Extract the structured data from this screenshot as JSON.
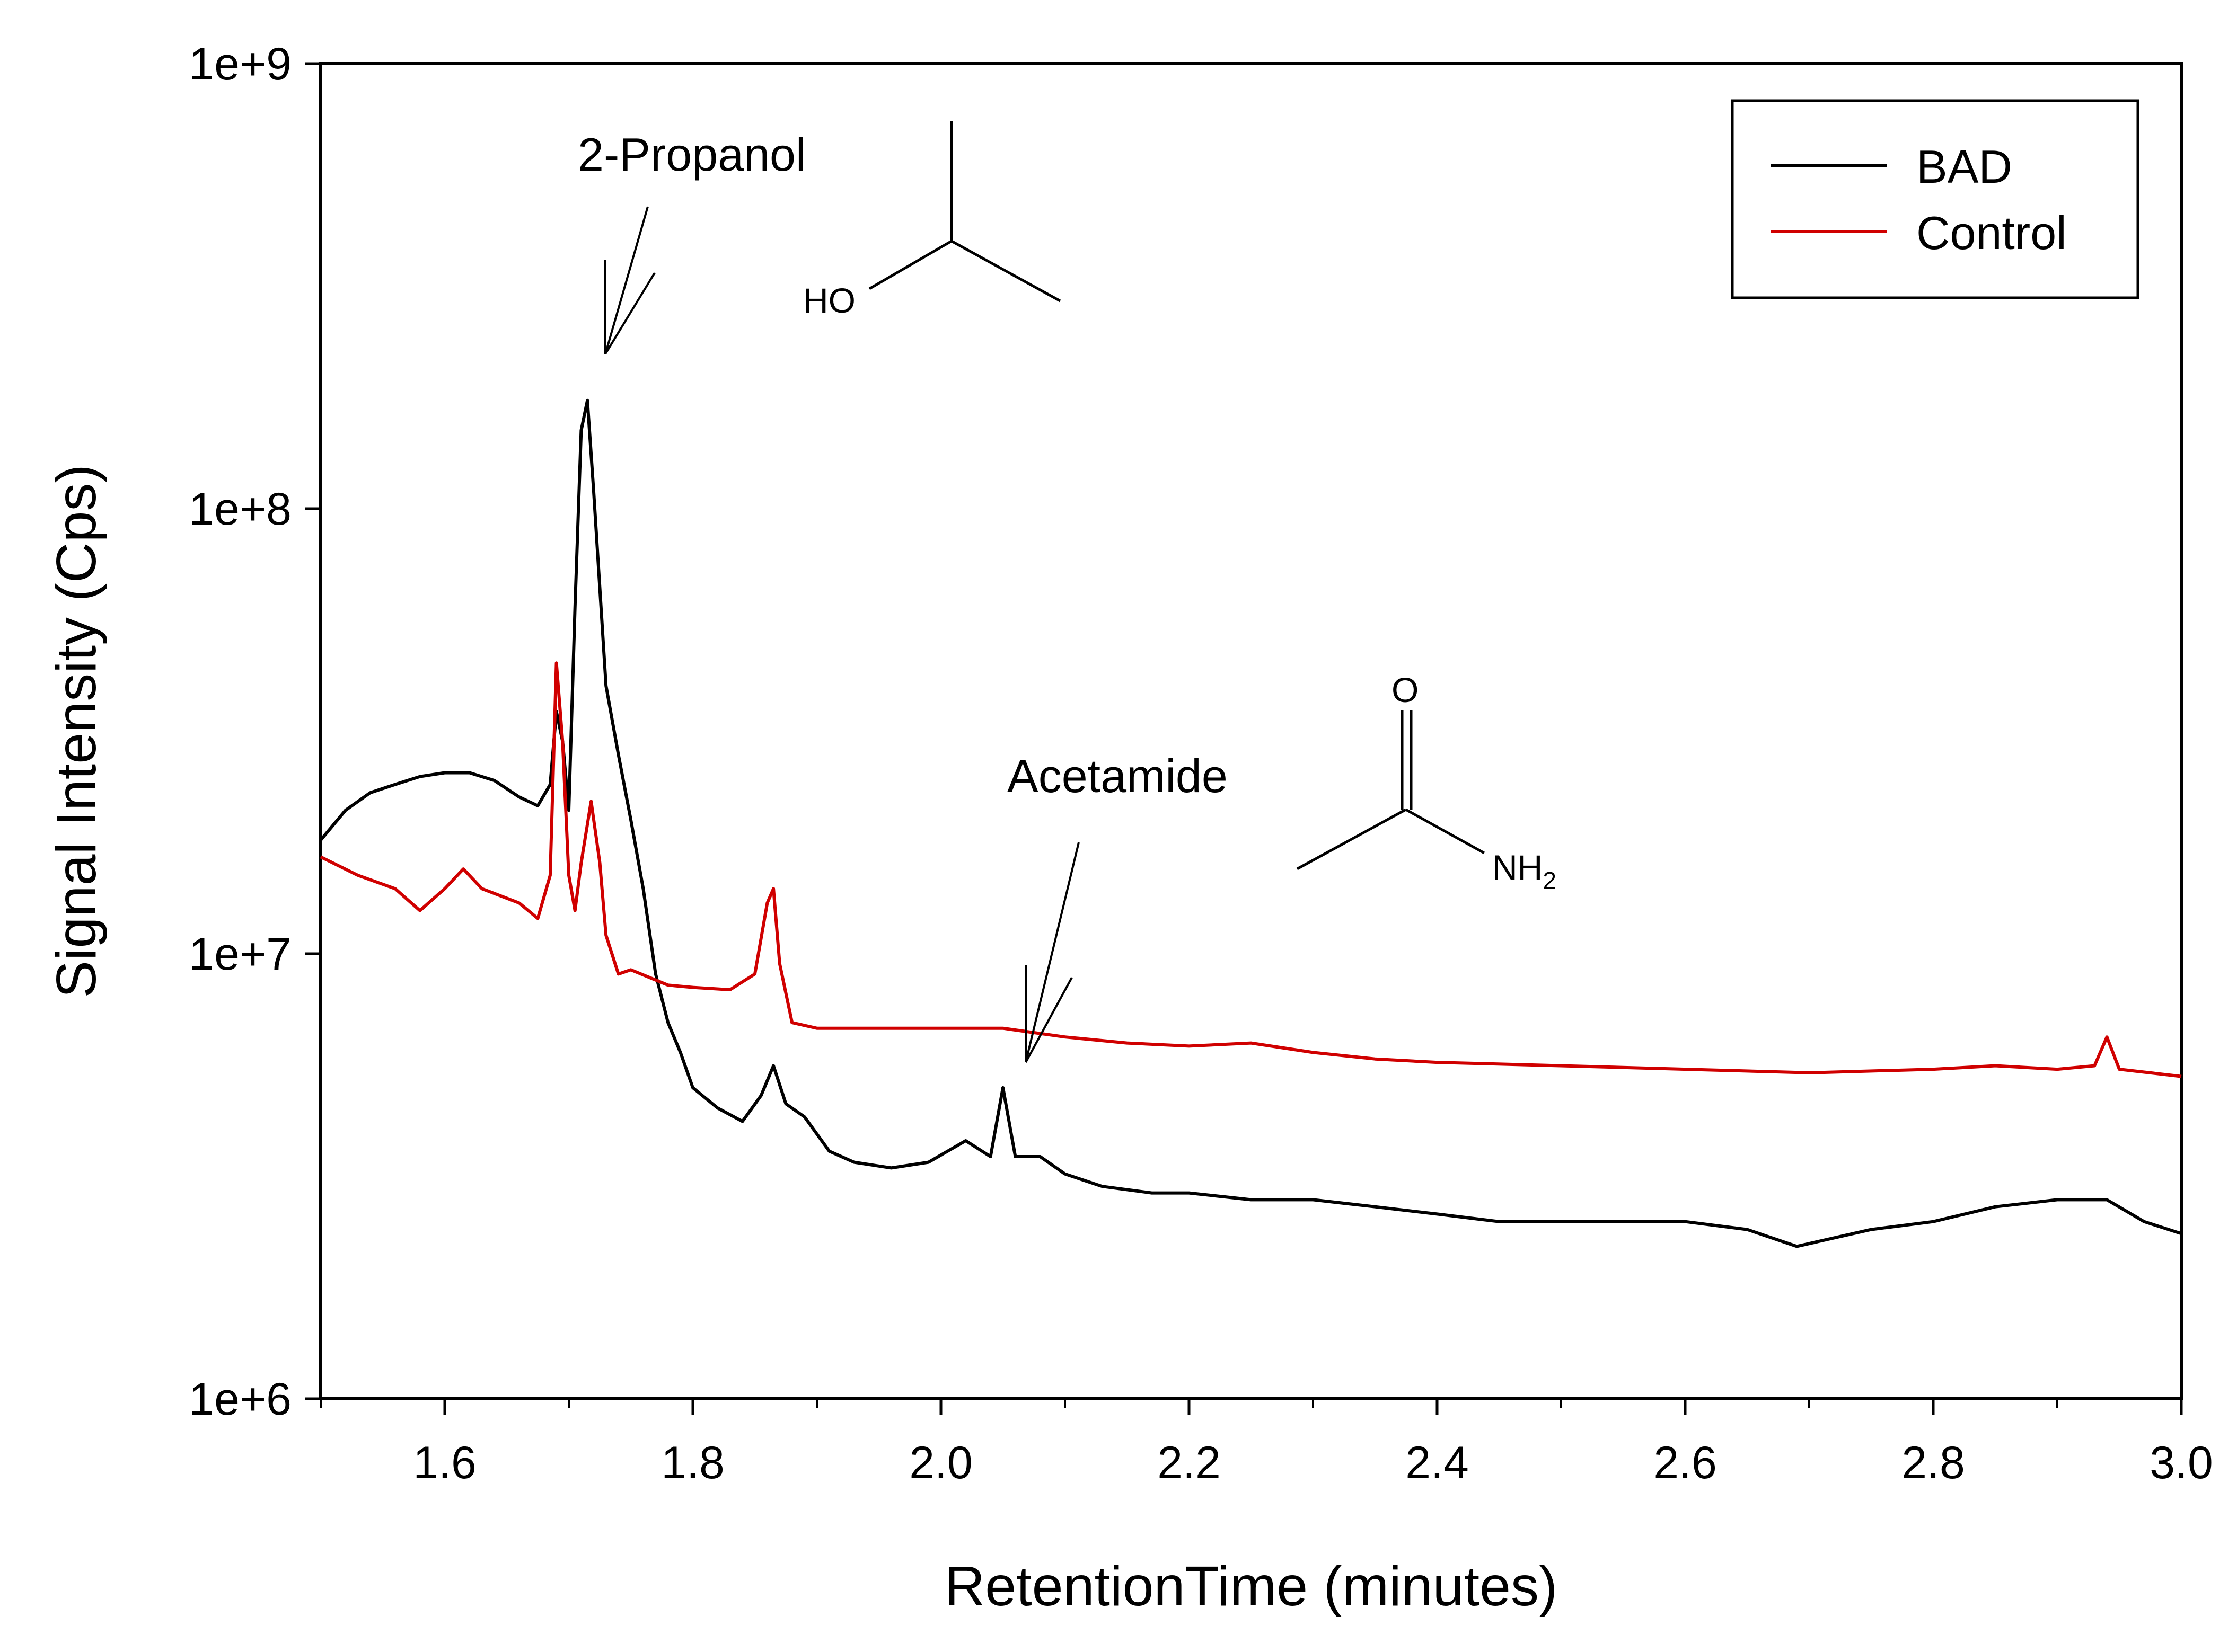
{
  "chart_data": {
    "type": "line",
    "xlabel": "RetentionTime (minutes)",
    "ylabel": "Signal Intensity (Cps)",
    "xlim": [
      1.5,
      3.0
    ],
    "ylim": [
      1000000,
      1000000000
    ],
    "yscale": "log",
    "grid": false,
    "legend_position": "top-right",
    "x_ticks": [
      1.6,
      1.8,
      2.0,
      2.2,
      2.4,
      2.6,
      2.8,
      3.0
    ],
    "x_tick_labels": [
      "1.6",
      "1.8",
      "2.0",
      "2.2",
      "2.4",
      "2.6",
      "2.8",
      "3.0"
    ],
    "y_ticks": [
      1000000,
      10000000,
      100000000,
      1000000000
    ],
    "y_tick_labels": [
      "1e+6",
      "1e+7",
      "1e+8",
      "1e+9"
    ],
    "series": [
      {
        "name": "BAD",
        "color": "#000000",
        "x": [
          1.5,
          1.52,
          1.54,
          1.56,
          1.58,
          1.6,
          1.62,
          1.64,
          1.66,
          1.675,
          1.685,
          1.69,
          1.695,
          1.7,
          1.705,
          1.71,
          1.715,
          1.72,
          1.73,
          1.74,
          1.75,
          1.76,
          1.77,
          1.78,
          1.79,
          1.8,
          1.82,
          1.84,
          1.855,
          1.865,
          1.875,
          1.89,
          1.91,
          1.93,
          1.96,
          1.99,
          2.02,
          2.04,
          2.05,
          2.06,
          2.08,
          2.1,
          2.13,
          2.17,
          2.2,
          2.25,
          2.3,
          2.35,
          2.4,
          2.45,
          2.5,
          2.55,
          2.6,
          2.65,
          2.69,
          2.75,
          2.8,
          2.85,
          2.9,
          2.94,
          2.97,
          3.0
        ],
        "y": [
          18000000,
          21000000,
          23000000,
          24000000,
          25000000,
          25500000,
          25500000,
          24500000,
          22500000,
          21500000,
          24000000,
          35000000,
          30000000,
          21000000,
          60000000,
          150000000,
          175000000,
          110000000,
          40000000,
          28000000,
          20000000,
          14000000,
          9000000,
          7000000,
          6000000,
          5000000,
          4500000,
          4200000,
          4800000,
          5600000,
          4600000,
          4300000,
          3600000,
          3400000,
          3300000,
          3400000,
          3800000,
          3500000,
          5000000,
          3500000,
          3500000,
          3200000,
          3000000,
          2900000,
          2900000,
          2800000,
          2800000,
          2700000,
          2600000,
          2500000,
          2500000,
          2500000,
          2500000,
          2400000,
          2200000,
          2400000,
          2500000,
          2700000,
          2800000,
          2800000,
          2500000,
          2350000
        ]
      },
      {
        "name": "Control",
        "color": "#d00000",
        "x": [
          1.5,
          1.53,
          1.56,
          1.58,
          1.6,
          1.615,
          1.63,
          1.66,
          1.675,
          1.685,
          1.69,
          1.695,
          1.7,
          1.705,
          1.71,
          1.718,
          1.725,
          1.73,
          1.74,
          1.75,
          1.78,
          1.8,
          1.83,
          1.85,
          1.86,
          1.865,
          1.87,
          1.88,
          1.9,
          1.95,
          2.0,
          2.05,
          2.1,
          2.15,
          2.2,
          2.25,
          2.3,
          2.35,
          2.4,
          2.5,
          2.6,
          2.7,
          2.8,
          2.85,
          2.9,
          2.93,
          2.94,
          2.95,
          3.0
        ],
        "y": [
          16500000,
          15000000,
          14000000,
          12500000,
          14000000,
          15500000,
          14000000,
          13000000,
          12000000,
          15000000,
          45000000,
          30000000,
          15000000,
          12500000,
          16000000,
          22000000,
          16000000,
          11000000,
          9000000,
          9200000,
          8500000,
          8400000,
          8300000,
          9000000,
          13000000,
          14000000,
          9500000,
          7000000,
          6800000,
          6800000,
          6800000,
          6800000,
          6500000,
          6300000,
          6200000,
          6300000,
          6000000,
          5800000,
          5700000,
          5600000,
          5500000,
          5400000,
          5500000,
          5600000,
          5500000,
          5600000,
          6500000,
          5500000,
          5300000
        ]
      }
    ],
    "annotations": [
      {
        "text": "2-Propanol",
        "x": 1.73,
        "y": 200000000
      },
      {
        "text": "Acetamide",
        "x": 2.07,
        "y": 6000000
      }
    ],
    "structures": {
      "propanol_label": "HO",
      "acetamide_o": "O",
      "acetamide_n": "NH",
      "acetamide_sub": "2"
    }
  }
}
